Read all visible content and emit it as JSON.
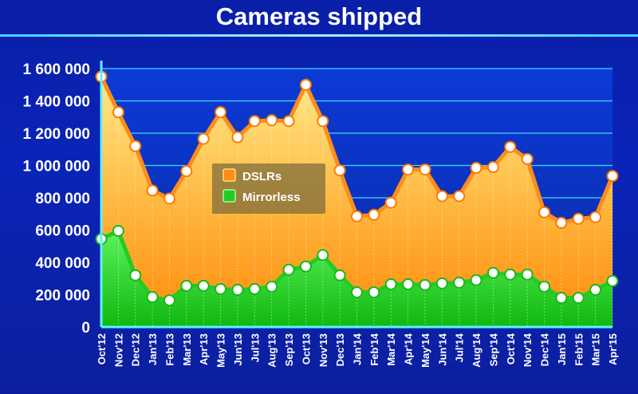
{
  "chart_data": {
    "type": "area",
    "title": "Cameras shipped",
    "categories": [
      "Oct'12",
      "Nov'12",
      "Dec'12",
      "Jan'13",
      "Feb'13",
      "Mar'13",
      "Apr'13",
      "May'13",
      "Jun'13",
      "Jul'13",
      "Aug'13",
      "Sep'13",
      "Oct'13",
      "Nov'13",
      "Dec'13",
      "Jan'14",
      "Feb'14",
      "Mar'14",
      "Apr'14",
      "May'14",
      "Jun'14",
      "Jul'14",
      "Aug'14",
      "Sep'14",
      "Oct'14",
      "Nov'14",
      "Dec'14",
      "Jan'15",
      "Feb'15",
      "Mar'15",
      "Apr'15"
    ],
    "series": [
      {
        "name": "DSLRs",
        "color": "#ff8c1a",
        "values": [
          1550000,
          1330000,
          1120000,
          845000,
          795000,
          965000,
          1165000,
          1330000,
          1175000,
          1275000,
          1280000,
          1275000,
          1500000,
          1275000,
          970000,
          685000,
          695000,
          770000,
          975000,
          975000,
          810000,
          810000,
          985000,
          990000,
          1115000,
          1040000,
          710000,
          645000,
          670000,
          680000,
          935000
        ]
      },
      {
        "name": "Mirrorless",
        "color": "#22cc22",
        "values": [
          545000,
          595000,
          320000,
          185000,
          165000,
          255000,
          255000,
          235000,
          230000,
          235000,
          250000,
          355000,
          375000,
          445000,
          320000,
          215000,
          215000,
          265000,
          265000,
          260000,
          270000,
          275000,
          290000,
          335000,
          325000,
          325000,
          250000,
          180000,
          180000,
          230000,
          285000
        ]
      }
    ],
    "ylim": [
      0,
      1600000
    ],
    "yticks": [
      0,
      200000,
      400000,
      600000,
      800000,
      1000000,
      1200000,
      1400000,
      1600000
    ],
    "ytick_labels": [
      "0",
      "200 000",
      "400 000",
      "600 000",
      "800 000",
      "1 000 000",
      "1 200 000",
      "1 400 000",
      "1 600 000"
    ],
    "legend_position": "center-left",
    "grid": true
  }
}
